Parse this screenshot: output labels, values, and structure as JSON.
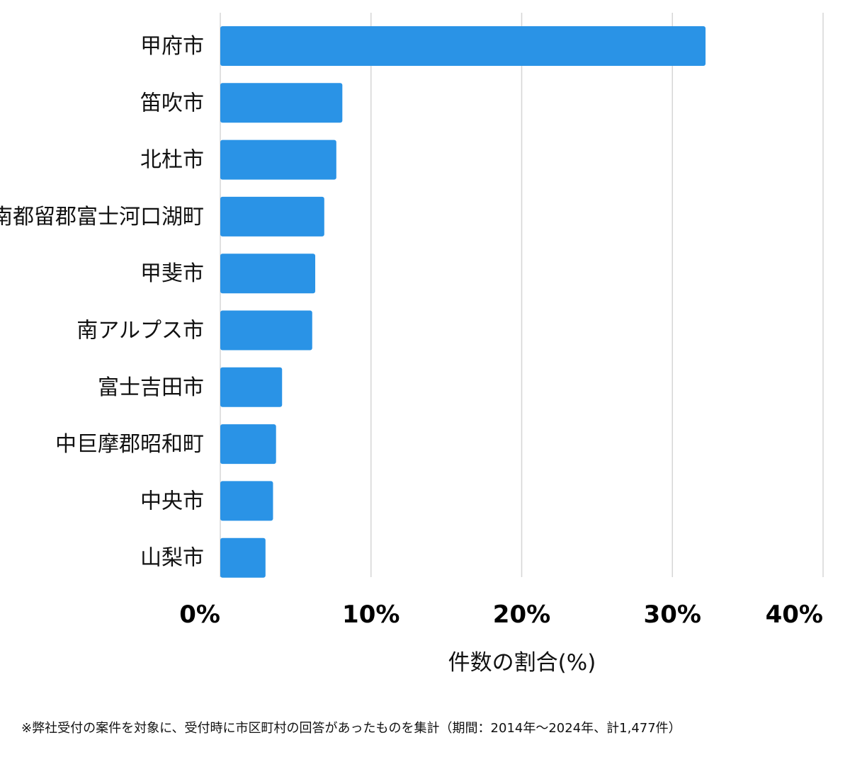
{
  "chart_data": {
    "type": "bar",
    "orientation": "horizontal",
    "categories": [
      "甲府市",
      "笛吹市",
      "北杜市",
      "南都留郡富士河口湖町",
      "甲斐市",
      "南アルプス市",
      "富士吉田市",
      "中巨摩郡昭和町",
      "中央市",
      "山梨市"
    ],
    "values": [
      32.2,
      8.1,
      7.7,
      6.9,
      6.3,
      6.1,
      4.1,
      3.7,
      3.5,
      3.0
    ],
    "xlim": [
      0,
      40
    ],
    "ticks": [
      0,
      10,
      20,
      30,
      40
    ],
    "tick_labels": [
      "0%",
      "10%",
      "20%",
      "30%",
      "40%"
    ],
    "xlabel": "件数の割合(%)",
    "ylabel": "",
    "grid": true,
    "bar_color": "#2a93e6"
  },
  "footnote": "※弊社受付の案件を対象に、受付時に市区町村の回答があったものを集計（期間：2014年～2024年、計1,477件）"
}
